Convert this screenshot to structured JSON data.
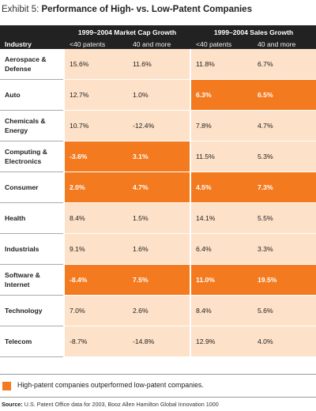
{
  "title": {
    "prefix": "Exhibit 5:",
    "main": "Performance of High- vs. Low-Patent Companies"
  },
  "header": {
    "industry_label": "Industry",
    "group1": "1999–2004 Market Cap Growth",
    "group2": "1999–2004 Sales Growth",
    "sub": [
      "<40 patents",
      "40 and more",
      "<40 patents",
      "40 and more"
    ]
  },
  "rows": [
    {
      "industry": "Aerospace & Defense",
      "values": [
        "15.6%",
        "11.6%",
        "11.8%",
        "6.7%"
      ],
      "highlight": [
        false,
        false,
        false,
        false
      ]
    },
    {
      "industry": "Auto",
      "values": [
        "12.7%",
        "1.0%",
        "6.3%",
        "6.5%"
      ],
      "highlight": [
        false,
        false,
        true,
        true
      ]
    },
    {
      "industry": "Chemicals & Energy",
      "values": [
        "10.7%",
        "-12.4%",
        "7.8%",
        "4.7%"
      ],
      "highlight": [
        false,
        false,
        false,
        false
      ]
    },
    {
      "industry": "Computing & Electronics",
      "values": [
        "-3.6%",
        "3.1%",
        "11.5%",
        "5.3%"
      ],
      "highlight": [
        true,
        true,
        false,
        false
      ]
    },
    {
      "industry": "Consumer",
      "values": [
        "2.0%",
        "4.7%",
        "4.5%",
        "7.3%"
      ],
      "highlight": [
        true,
        true,
        true,
        true
      ]
    },
    {
      "industry": "Health",
      "values": [
        "8.4%",
        "1.5%",
        "14.1%",
        "5.5%"
      ],
      "highlight": [
        false,
        false,
        false,
        false
      ]
    },
    {
      "industry": "Industrials",
      "values": [
        "9.1%",
        "1.6%",
        "6.4%",
        "3.3%"
      ],
      "highlight": [
        false,
        false,
        false,
        false
      ]
    },
    {
      "industry": "Software & Internet",
      "values": [
        "-8.4%",
        "7.5%",
        "11.0%",
        "19.5%"
      ],
      "highlight": [
        true,
        true,
        true,
        true
      ]
    },
    {
      "industry": "Technology",
      "values": [
        "7.0%",
        "2.6%",
        "8.4%",
        "5.6%"
      ],
      "highlight": [
        false,
        false,
        false,
        false
      ]
    },
    {
      "industry": "Telecom",
      "values": [
        "-8.7%",
        "-14.8%",
        "12.9%",
        "4.0%"
      ],
      "highlight": [
        false,
        false,
        false,
        false
      ]
    }
  ],
  "legend": {
    "text": "High-patent companies outperformed low-patent companies.",
    "color": "#f37a1f"
  },
  "source": {
    "label": "Source:",
    "text": "U.S. Patent Office data for 2003, Booz Allen Hamilton Global Innovation 1000"
  },
  "colors": {
    "highlight": "#f37a1f",
    "cell": "#fde1c8",
    "header": "#222222"
  }
}
